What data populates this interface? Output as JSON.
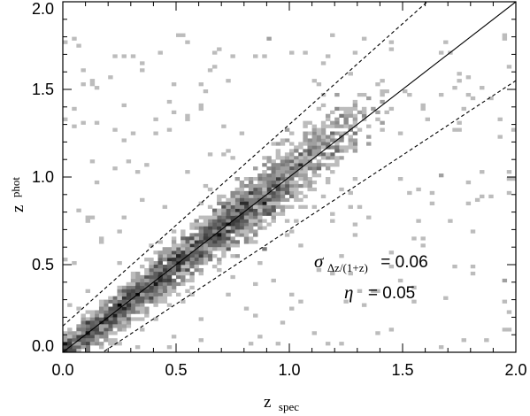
{
  "chart_data": {
    "type": "heatmap",
    "title": "",
    "xlabel": {
      "main": "z",
      "sub": "spec"
    },
    "ylabel": {
      "main": "z",
      "sub": "phot"
    },
    "xlim": [
      0.0,
      2.0
    ],
    "ylim": [
      0.0,
      2.0
    ],
    "xticks": [
      "0.0",
      "0.5",
      "1.0",
      "1.5",
      "2.0"
    ],
    "yticks": [
      "0.0",
      "0.5",
      "1.0",
      "1.5",
      "2.0"
    ],
    "grid": false,
    "bin_size": 0.02,
    "reference_lines": [
      {
        "style": "solid",
        "description": "z_phot = z_spec",
        "slope": 1.0,
        "offset": 0.0
      },
      {
        "style": "dashed",
        "description": "z_phot = z_spec + 0.15(1+z_spec)",
        "slope": 1.15,
        "offset": 0.15
      },
      {
        "style": "dashed",
        "description": "z_phot = z_spec - 0.15(1+z_spec)",
        "slope": 0.85,
        "offset": -0.15
      }
    ],
    "annotations": [
      {
        "symbol": "σ",
        "subscript": "Δz/(1+z)",
        "text": "= 0.06",
        "position": "lower-right"
      },
      {
        "symbol": "η",
        "subscript": "",
        "text": "= 0.05",
        "position": "lower-right"
      }
    ],
    "density_ridge": [
      {
        "z": 0.02,
        "density": 0.3
      },
      {
        "z": 0.1,
        "density": 0.45
      },
      {
        "z": 0.2,
        "density": 0.55
      },
      {
        "z": 0.3,
        "density": 0.6
      },
      {
        "z": 0.45,
        "density": 0.7
      },
      {
        "z": 0.55,
        "density": 0.65
      },
      {
        "z": 0.65,
        "density": 0.7
      },
      {
        "z": 0.75,
        "density": 1.0
      },
      {
        "z": 0.85,
        "density": 0.75
      },
      {
        "z": 0.95,
        "density": 0.7
      },
      {
        "z": 1.05,
        "density": 0.45
      },
      {
        "z": 1.2,
        "density": 0.3
      },
      {
        "z": 1.3,
        "density": 0.2
      }
    ]
  }
}
